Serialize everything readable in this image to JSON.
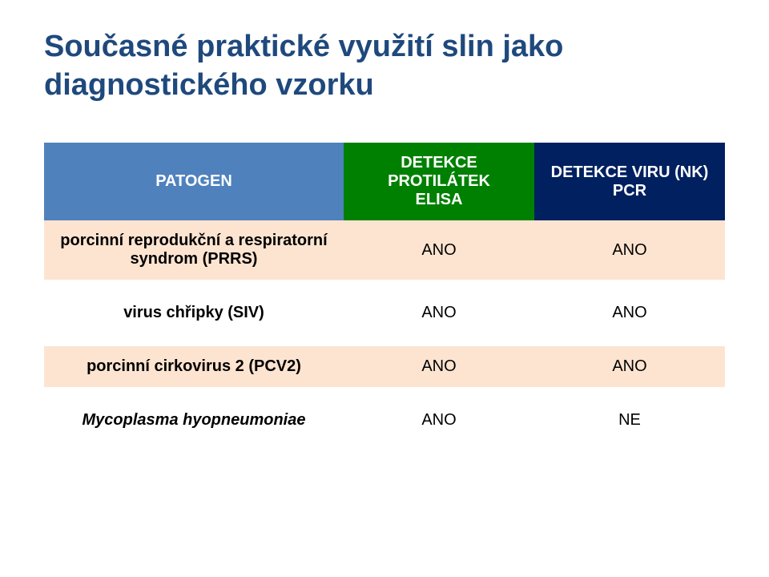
{
  "title_line1": "Současné praktické využití slin jako",
  "title_line2": "diagnostického vzorku",
  "title_color": "#1f497d",
  "table": {
    "header_bg": [
      "#4f81bd",
      "#008000",
      "#002060"
    ],
    "header_color": "#ffffff",
    "row_bg_band": "#fde4d0",
    "row_bg_plain": "#ffffff",
    "columns": [
      "PATOGEN",
      "DETEKCE PROTILÁTEK\nELISA",
      "DETEKCE VIRU (NK)\nPCR"
    ],
    "rows": [
      {
        "label": "porcinní reprodukční a respiratorní syndrom (PRRS)",
        "c1": "ANO",
        "c2": "ANO",
        "band": true,
        "italic": false
      },
      {
        "label": "virus chřipky (SIV)",
        "c1": "ANO",
        "c2": "ANO",
        "band": false,
        "italic": false
      },
      {
        "label": "porcinní cirkovirus 2 (PCV2)",
        "c1": "ANO",
        "c2": "ANO",
        "band": true,
        "italic": false
      },
      {
        "label": "Mycoplasma hyopneumoniae",
        "c1": "ANO",
        "c2": "NE",
        "band": false,
        "italic": true
      }
    ]
  }
}
